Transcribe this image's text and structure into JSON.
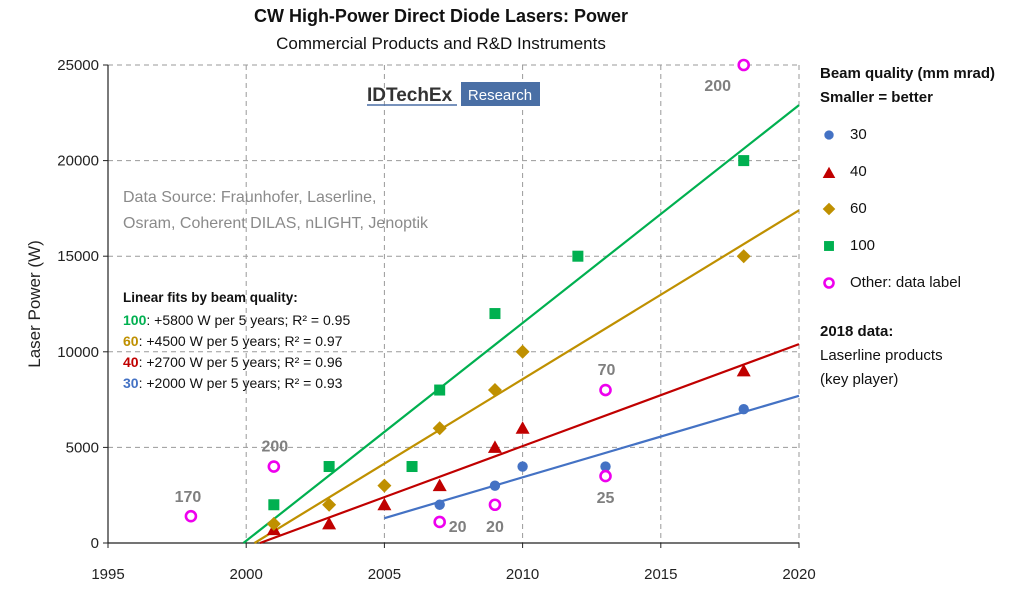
{
  "chart_data": {
    "type": "scatter",
    "title": "CW High-Power Direct Diode Lasers: Power",
    "subtitle": "Commercial Products and R&D Instruments",
    "ylabel": "Laser Power (W)",
    "xlabel": "",
    "xlim": [
      1995,
      2020
    ],
    "ylim": [
      0,
      25000
    ],
    "xticks": [
      1995,
      2000,
      2005,
      2010,
      2015,
      2020
    ],
    "yticks": [
      0,
      5000,
      10000,
      15000,
      20000,
      25000
    ],
    "grid": true,
    "series": [
      {
        "name": "30",
        "marker": "circle",
        "color": "#4472c4",
        "points": [
          [
            2007,
            2000
          ],
          [
            2009,
            3000
          ],
          [
            2010,
            4000
          ],
          [
            2013,
            4000
          ],
          [
            2018,
            7000
          ]
        ]
      },
      {
        "name": "40",
        "marker": "triangle",
        "color": "#c00000",
        "points": [
          [
            2001,
            700
          ],
          [
            2003,
            1000
          ],
          [
            2005,
            2000
          ],
          [
            2007,
            3000
          ],
          [
            2009,
            5000
          ],
          [
            2010,
            6000
          ],
          [
            2018,
            9000
          ]
        ]
      },
      {
        "name": "60",
        "marker": "diamond",
        "color": "#bf9000",
        "points": [
          [
            2001,
            1000
          ],
          [
            2003,
            2000
          ],
          [
            2005,
            3000
          ],
          [
            2007,
            6000
          ],
          [
            2009,
            8000
          ],
          [
            2010,
            10000
          ],
          [
            2018,
            15000
          ]
        ]
      },
      {
        "name": "100",
        "marker": "square",
        "color": "#00b050",
        "points": [
          [
            2001,
            2000
          ],
          [
            2003,
            4000
          ],
          [
            2006,
            4000
          ],
          [
            2007,
            8000
          ],
          [
            2009,
            12000
          ],
          [
            2012,
            15000
          ],
          [
            2018,
            20000
          ]
        ]
      },
      {
        "name": "Other: data label",
        "marker": "ring",
        "color": "#ee00ee",
        "points": [
          [
            1998,
            1400,
            "170"
          ],
          [
            2001,
            4000,
            "200"
          ],
          [
            2007,
            1100,
            "20"
          ],
          [
            2009,
            2000,
            "20"
          ],
          [
            2013,
            8000,
            "70"
          ],
          [
            2013,
            3500,
            "25"
          ],
          [
            2018,
            25000,
            "200"
          ]
        ]
      }
    ],
    "fits": [
      {
        "name": "100",
        "color": "#00b050",
        "x": [
          1999.9,
          2020
        ],
        "y": [
          0,
          22900
        ]
      },
      {
        "name": "60",
        "color": "#bf9000",
        "x": [
          2000.3,
          2020
        ],
        "y": [
          0,
          17400
        ]
      },
      {
        "name": "40",
        "color": "#c00000",
        "x": [
          2000.5,
          2020
        ],
        "y": [
          0,
          10400
        ]
      },
      {
        "name": "30",
        "color": "#4472c4",
        "x": [
          2005,
          2020
        ],
        "y": [
          1300,
          7700
        ]
      }
    ],
    "source_text": [
      "Data Source: Fraunhofer, Laserline,",
      "Osram, Coherent DILAS, nLIGHT, Jenoptik"
    ],
    "fit_box": {
      "heading": "Linear fits by beam quality:",
      "lines": [
        {
          "key": "100",
          "text": ": +5800 W per 5 years; R² = 0.95",
          "color": "#00b050"
        },
        {
          "key": "60",
          "text": ": +4500 W per 5 years; R² = 0.97",
          "color": "#bf9000"
        },
        {
          "key": "40",
          "text": ": +2700 W per 5 years; R² = 0.96",
          "color": "#c00000"
        },
        {
          "key": "30",
          "text": ": +2000 W per 5 years; R² = 0.93",
          "color": "#4472c4"
        }
      ]
    },
    "logo": {
      "brand": "IDTechEx",
      "tag": "Research",
      "tag_bg": "#4a6fa5"
    }
  },
  "legend": {
    "heading1": "Beam quality (mm mrad)",
    "heading2": "Smaller = better",
    "items": [
      {
        "label": "30",
        "marker": "circle",
        "color": "#4472c4"
      },
      {
        "label": "40",
        "marker": "triangle",
        "color": "#c00000"
      },
      {
        "label": "60",
        "marker": "diamond",
        "color": "#bf9000"
      },
      {
        "label": "100",
        "marker": "square",
        "color": "#00b050"
      },
      {
        "label": "Other: data label",
        "marker": "ring",
        "color": "#ee00ee"
      }
    ]
  },
  "note": {
    "title": "2018 data:",
    "line1": "Laserline products",
    "line2": "(key player)"
  }
}
